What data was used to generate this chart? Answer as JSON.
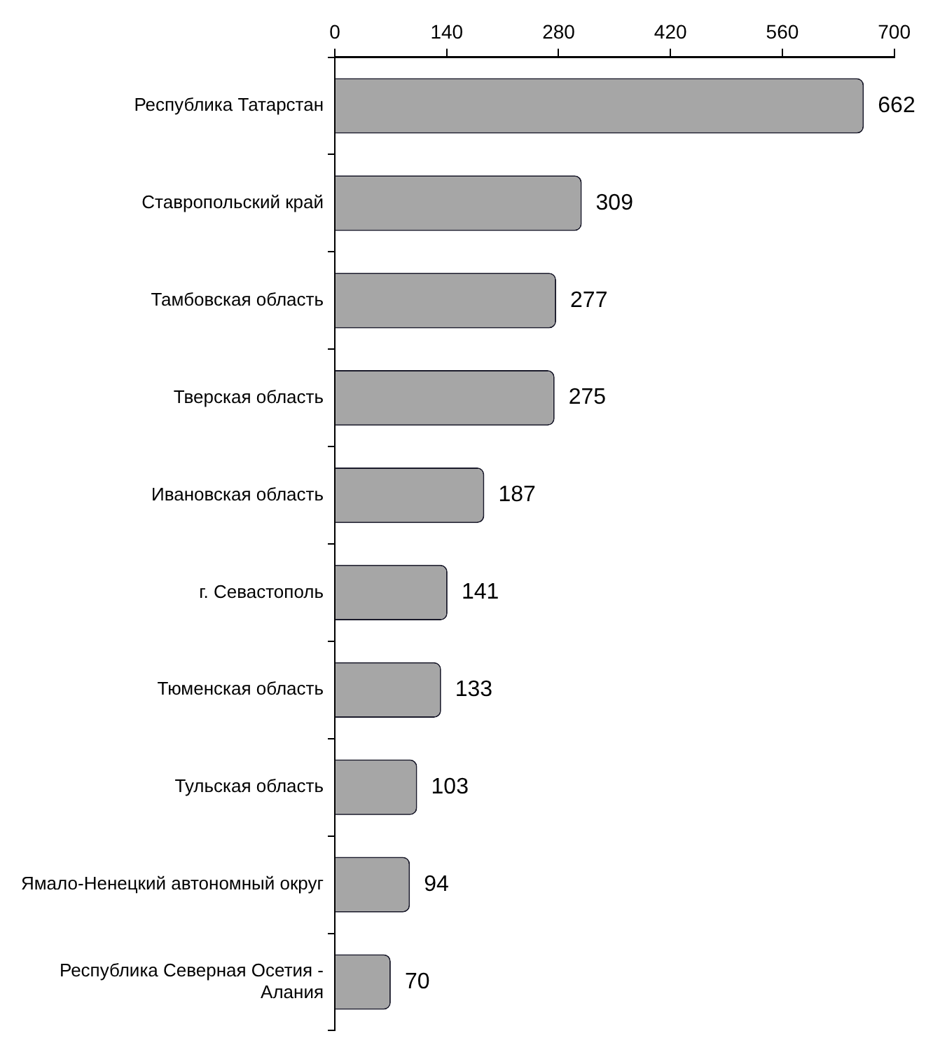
{
  "chart_data": {
    "type": "bar",
    "orientation": "horizontal",
    "categories": [
      "Республика Татарстан",
      "Ставропольский край",
      "Тамбовская область",
      "Тверская область",
      "Ивановская область",
      "г. Севастополь",
      "Тюменская область",
      "Тульская область",
      "Ямало-Ненецкий автономный округ",
      "Республика Северная Осетия - Алания"
    ],
    "values": [
      662,
      309,
      277,
      275,
      187,
      141,
      133,
      103,
      94,
      70
    ],
    "color": "#a6a6a6",
    "xlim": [
      0,
      700
    ],
    "xticks": [
      0,
      140,
      280,
      420,
      560,
      700
    ],
    "grid": false,
    "legend": false,
    "data_labels": true
  }
}
